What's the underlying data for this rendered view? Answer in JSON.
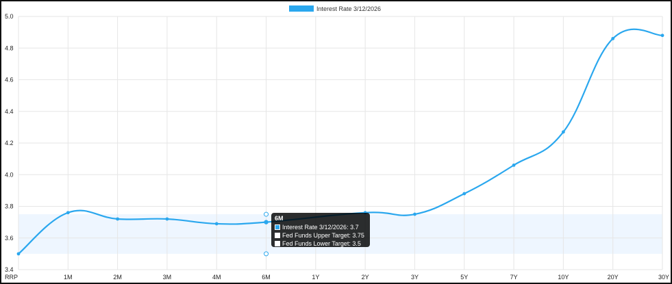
{
  "chart_data": {
    "type": "line",
    "title": "",
    "xlabel": "",
    "ylabel": "",
    "categories": [
      "RRP",
      "1M",
      "2M",
      "3M",
      "4M",
      "6M",
      "1Y",
      "2Y",
      "3Y",
      "5Y",
      "7Y",
      "10Y",
      "20Y",
      "30Y"
    ],
    "series": [
      {
        "name": "Interest Rate 3/12/2026",
        "color": "#2aa7ee",
        "values": [
          3.5,
          3.76,
          3.72,
          3.72,
          3.69,
          3.7,
          null,
          3.76,
          3.75,
          3.88,
          4.06,
          4.27,
          4.86,
          4.88
        ]
      }
    ],
    "band": {
      "upper": 3.75,
      "lower": 3.5,
      "color": "#eef6ff"
    },
    "ylim": [
      3.4,
      5.0
    ],
    "yticks": [
      "3.4",
      "3.6",
      "3.8",
      "4.0",
      "4.2",
      "4.4",
      "4.6",
      "4.8",
      "5.0"
    ],
    "grid": true,
    "legend": {
      "label": "Interest Rate 3/12/2026",
      "color": "#2aa7ee",
      "position": "top"
    },
    "tooltip": {
      "title": "6M",
      "rows": [
        {
          "label": "Interest Rate 3/12/2026: 3.7",
          "color": "#2aa7ee"
        },
        {
          "label": "Fed Funds Upper Target: 3.75",
          "color": "#ffffff"
        },
        {
          "label": "Fed Funds Lower Target: 3.5",
          "color": "#ffffff"
        }
      ]
    }
  }
}
